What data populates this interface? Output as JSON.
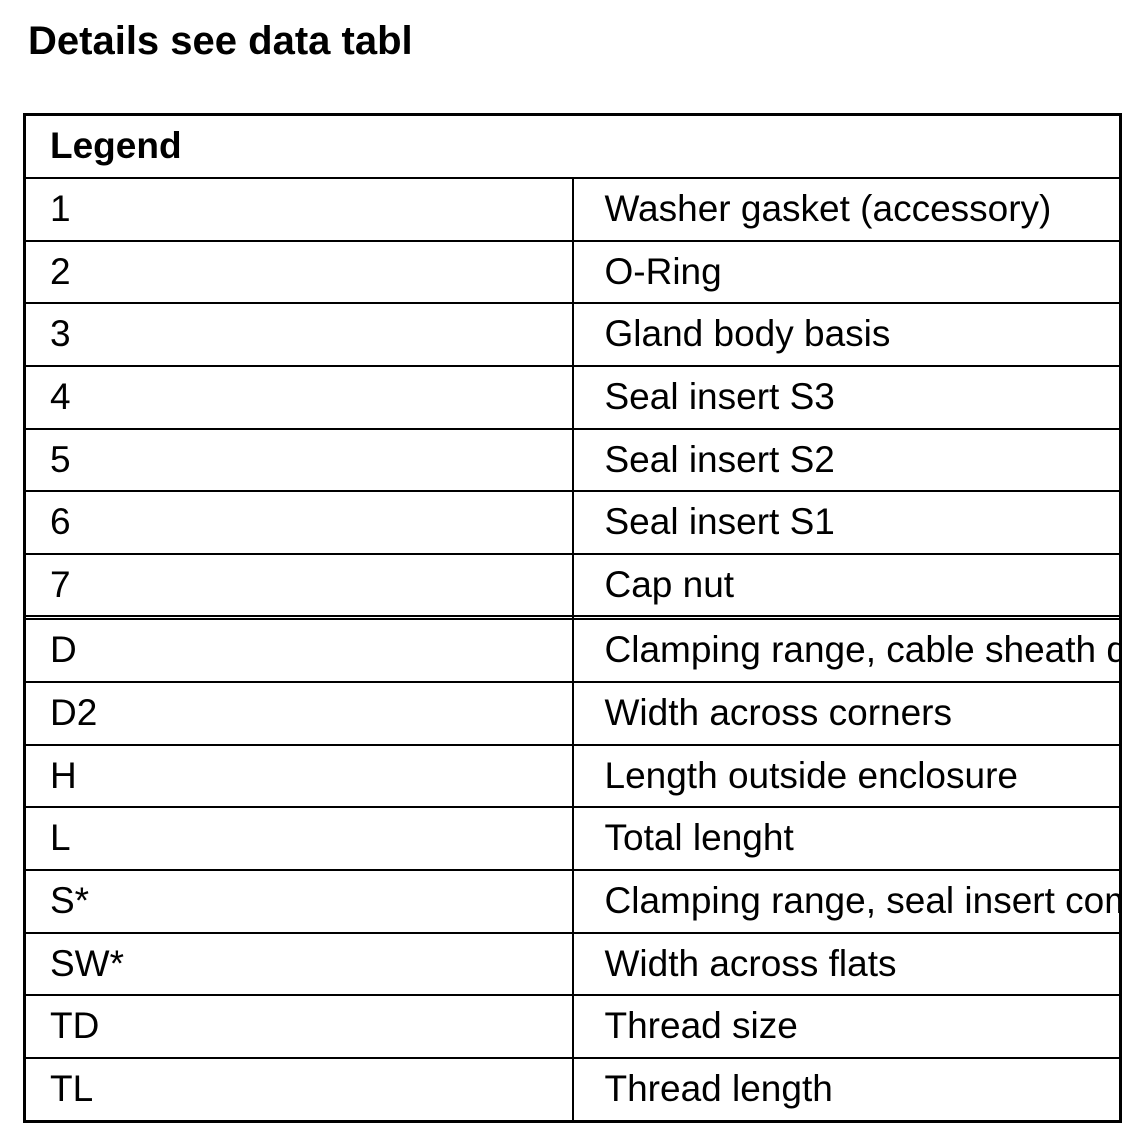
{
  "page": {
    "title": "Details see data tabl"
  },
  "legend_table": {
    "header": "Legend",
    "rows": [
      {
        "code": "1",
        "description": "Washer gasket (accessory)"
      },
      {
        "code": "2",
        "description": "O-Ring"
      },
      {
        "code": "3",
        "description": "Gland body basis"
      },
      {
        "code": "4",
        "description": "Seal insert S3"
      },
      {
        "code": "5",
        "description": "Seal insert S2"
      },
      {
        "code": "6",
        "description": "Seal insert S1"
      },
      {
        "code": "7",
        "description": "Cap nut"
      },
      {
        "code": "",
        "description": ""
      },
      {
        "code": "D",
        "description": "Clamping range, cable sheath diameter"
      },
      {
        "code": "D2",
        "description": "Width across corners"
      },
      {
        "code": "H",
        "description": "Length outside enclosure"
      },
      {
        "code": "L",
        "description": "Total lenght"
      },
      {
        "code": "S*",
        "description": "Clamping range, seal insert combinations"
      },
      {
        "code": "SW*",
        "description": "Width across flats"
      },
      {
        "code": "TD",
        "description": "Thread size"
      },
      {
        "code": "TL",
        "description": "Thread length"
      }
    ]
  }
}
